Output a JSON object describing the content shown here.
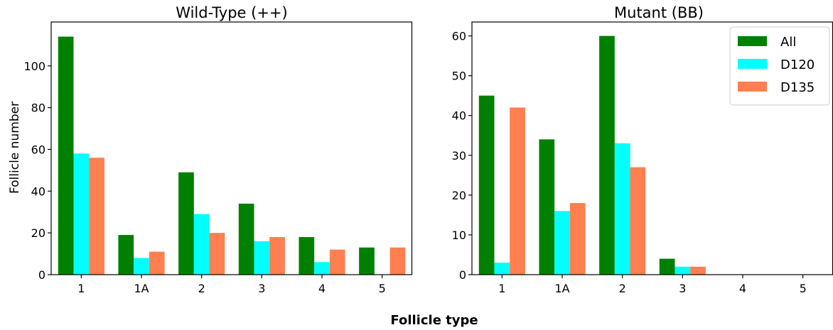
{
  "figure": {
    "ylabel": "Follicle number",
    "xlabel": "Follicle type"
  },
  "chart_data": [
    {
      "type": "bar",
      "title": "Wild-Type (++)",
      "categories": [
        "1",
        "1A",
        "2",
        "3",
        "4",
        "5"
      ],
      "ylim": [
        0,
        121
      ],
      "yticks": [
        0,
        20,
        40,
        60,
        80,
        100
      ],
      "series": [
        {
          "name": "All",
          "color": "#008000",
          "values": [
            114,
            19,
            49,
            34,
            18,
            13
          ]
        },
        {
          "name": "D120",
          "color": "#00ffff",
          "values": [
            58,
            8,
            29,
            16,
            6,
            0
          ]
        },
        {
          "name": "D135",
          "color": "#ff7f50",
          "values": [
            56,
            11,
            20,
            18,
            12,
            13
          ]
        }
      ]
    },
    {
      "type": "bar",
      "title": "Mutant (BB)",
      "categories": [
        "1",
        "1A",
        "2",
        "3",
        "4",
        "5"
      ],
      "ylim": [
        0,
        63.5
      ],
      "yticks": [
        0,
        10,
        20,
        30,
        40,
        50,
        60
      ],
      "legend": "top-right",
      "series": [
        {
          "name": "All",
          "color": "#008000",
          "values": [
            45,
            34,
            60,
            4,
            0,
            0
          ]
        },
        {
          "name": "D120",
          "color": "#00ffff",
          "values": [
            3,
            16,
            33,
            2,
            0,
            0
          ]
        },
        {
          "name": "D135",
          "color": "#ff7f50",
          "values": [
            42,
            18,
            27,
            2,
            0,
            0
          ]
        }
      ]
    }
  ]
}
